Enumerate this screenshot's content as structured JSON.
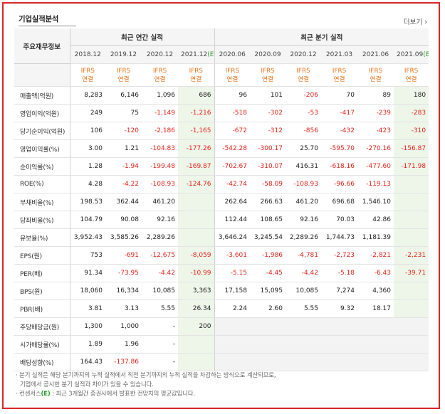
{
  "title": "기업실적분석",
  "more_label": "더보기",
  "header": {
    "row_head": "주요재무정보",
    "annual_label": "최근 연간 실적",
    "quarter_label": "최근 분기 실적",
    "periods": [
      "2018.12",
      "2019.12",
      "2020.12",
      "2021.12",
      "2020.06",
      "2020.09",
      "2020.12",
      "2021.03",
      "2021.06",
      "2021.09"
    ],
    "estimate_tag": "(E)",
    "standard": "IFRS",
    "consolidation": "연결"
  },
  "rows": [
    {
      "label": "매출액(억원)",
      "values": [
        "8,283",
        "6,146",
        "1,096",
        "686",
        "96",
        "101",
        "-206",
        "70",
        "89",
        "180"
      ]
    },
    {
      "label": "영업이익(억원)",
      "values": [
        "249",
        "75",
        "-1,149",
        "-1,216",
        "-518",
        "-302",
        "-53",
        "-417",
        "-239",
        "-283"
      ]
    },
    {
      "label": "당기순이익(억원)",
      "values": [
        "106",
        "-120",
        "-2,186",
        "-1,165",
        "-672",
        "-312",
        "-856",
        "-432",
        "-423",
        "-310"
      ]
    },
    {
      "label": "영업이익률(%)",
      "values": [
        "3.00",
        "1.21",
        "-104.83",
        "-177.26",
        "-542.28",
        "-300.17",
        "25.70",
        "-595.70",
        "-270.16",
        "-156.87"
      ]
    },
    {
      "label": "순이익률(%)",
      "values": [
        "1.28",
        "-1.94",
        "-199.48",
        "-169.87",
        "-702.67",
        "-310.07",
        "416.31",
        "-618.16",
        "-477.60",
        "-171.98"
      ]
    },
    {
      "label": "ROE(%)",
      "values": [
        "4.28",
        "-4.22",
        "-108.93",
        "-124.76",
        "-42.74",
        "-58.09",
        "-108.93",
        "-96.66",
        "-119.13",
        ""
      ]
    },
    {
      "label": "부채비율(%)",
      "values": [
        "198.53",
        "362.44",
        "461.20",
        "",
        "262.64",
        "266.63",
        "461.20",
        "696.68",
        "1,546.10",
        ""
      ]
    },
    {
      "label": "당좌비율(%)",
      "values": [
        "104.79",
        "90.08",
        "92.16",
        "",
        "112.44",
        "108.65",
        "92.16",
        "70.03",
        "42.86",
        ""
      ]
    },
    {
      "label": "유보율(%)",
      "values": [
        "3,952.43",
        "3,585.26",
        "2,289.26",
        "",
        "3,646.24",
        "3,245.54",
        "2,289.26",
        "1,744.73",
        "1,181.39",
        ""
      ]
    },
    {
      "label": "EPS(원)",
      "values": [
        "753",
        "-691",
        "-12,675",
        "-8,059",
        "-3,601",
        "-1,986",
        "-4,781",
        "-2,723",
        "-2,821",
        "-2,231"
      ]
    },
    {
      "label": "PER(배)",
      "values": [
        "91.34",
        "-73.95",
        "-4.42",
        "-10.99",
        "-5.15",
        "-4.45",
        "-4.42",
        "-5.18",
        "-6.43",
        "-39.71"
      ]
    },
    {
      "label": "BPS(원)",
      "values": [
        "18,060",
        "16,334",
        "10,085",
        "3,363",
        "17,158",
        "15,095",
        "10,085",
        "7,274",
        "4,360",
        ""
      ]
    },
    {
      "label": "PBR(배)",
      "values": [
        "3.81",
        "3.13",
        "5.55",
        "26.34",
        "2.24",
        "2.60",
        "5.55",
        "9.32",
        "18.17",
        ""
      ]
    },
    {
      "label": "주당배당금(원)",
      "values": [
        "1,300",
        "1,000",
        "-",
        "200",
        "",
        "",
        "",
        "",
        "",
        ""
      ]
    },
    {
      "label": "시가배당률(%)",
      "values": [
        "1.89",
        "1.96",
        "-",
        "",
        "",
        "",
        "",
        "",
        "",
        ""
      ]
    },
    {
      "label": "배당성향(%)",
      "values": [
        "164.43",
        "-137.86",
        "-",
        "",
        "",
        "",
        "",
        "",
        "",
        ""
      ]
    }
  ],
  "notes": {
    "line1": "· 분기 실적은 해당 분기까지의 누적 실적에서 직전 분기까지의 누적 실적을 차감하는 방식으로 계산되므로,",
    "line2": "기업에서 공시한 분기 실적과 차이가 있을 수 있습니다.",
    "line3_prefix": "· 컨센서스",
    "line3_tag": "(E)",
    "line3_suffix": " : 최근 3개월간 증권사에서 발표한 전망치의 평균값입니다."
  },
  "colors": {
    "border": "#d9252a",
    "negative": "#e2231a",
    "ifrs": "#e8731a",
    "estimate": "#2e9b2e",
    "estimate_bg": "#eef6ea"
  }
}
